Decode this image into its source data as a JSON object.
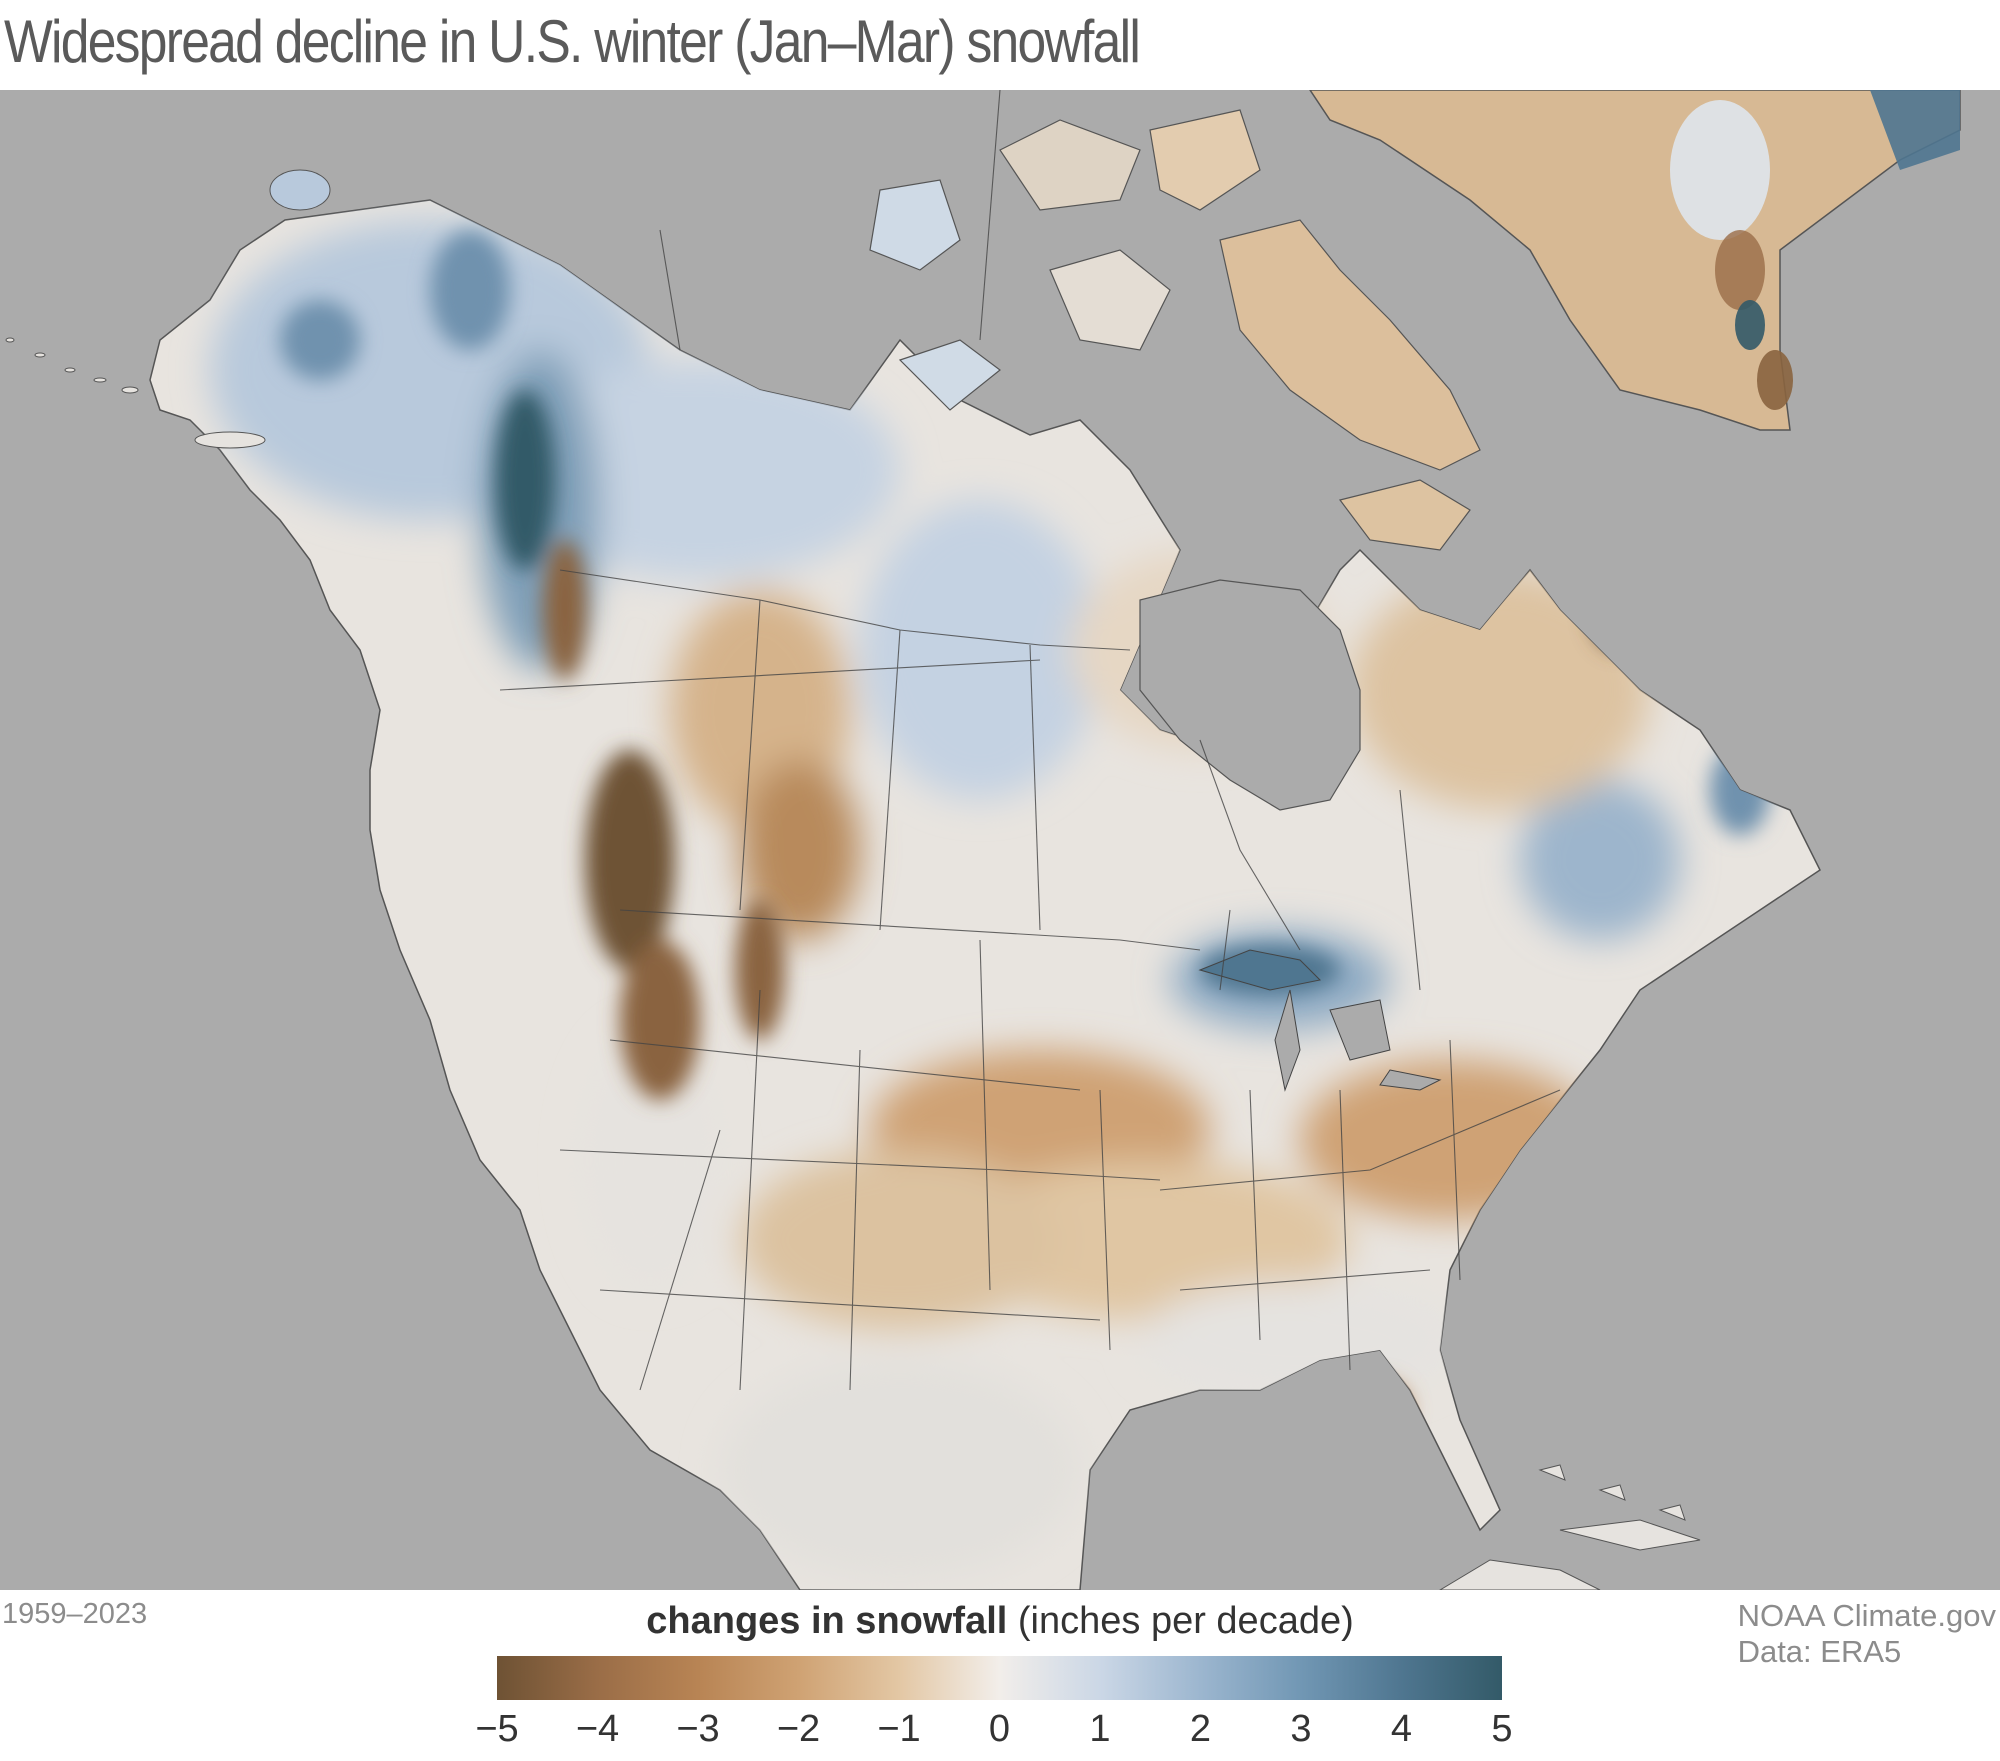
{
  "title": "Widespread decline in U.S. winter (Jan–Mar) snowfall",
  "period": "1959–2023",
  "credit": {
    "line1": "NOAA Climate.gov",
    "line2": "Data: ERA5"
  },
  "legend": {
    "title_bold": "changes in snowfall",
    "title_unit": "(inches per decade)",
    "ticks": [
      "−5",
      "−4",
      "−3",
      "−2",
      "−1",
      "0",
      "1",
      "2",
      "3",
      "4",
      "5"
    ],
    "min": -5,
    "max": 5,
    "colors": {
      "min": "#6e5234",
      "zero": "#f2eeea",
      "max": "#335a68",
      "ocean": "#ababab"
    }
  }
}
